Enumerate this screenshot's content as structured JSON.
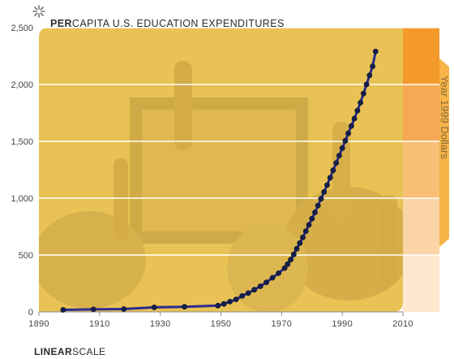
{
  "header": {
    "title_bold": "PER",
    "title_rest": "CAPITA U.S. EDUCATION EXPENDITURES"
  },
  "footer": {
    "scale_bold": "LINEAR",
    "scale_rest": "SCALE"
  },
  "legend": {
    "units_label": "Year 1999 Dollars"
  },
  "colors": {
    "plot_fill": "#e9c255",
    "line": "#2a2c92",
    "marker": "#16204c",
    "band_shades": [
      "#f39a2a",
      "#f5a955",
      "#f8bf75",
      "#fbd5a6",
      "#fde7cf"
    ]
  },
  "chart_data": {
    "type": "line",
    "title": "PERCAPITA U.S. EDUCATION EXPENDITURES",
    "xlabel": "",
    "ylabel": "Year 1999 Dollars",
    "xlim": [
      1890,
      2010
    ],
    "ylim": [
      0,
      2500
    ],
    "x_ticks": [
      1890,
      1910,
      1930,
      1950,
      1970,
      1990,
      2010
    ],
    "y_ticks": [
      0,
      500,
      1000,
      1500,
      2000,
      2500
    ],
    "x_tick_labels": [
      "1890",
      "1910",
      "1930",
      "1950",
      "1970",
      "1990",
      "2010"
    ],
    "y_tick_labels": [
      "0",
      "500",
      "1,000",
      "1,500",
      "2,000",
      "2,500"
    ],
    "grid": "horizontal",
    "series": [
      {
        "values": [
          {
            "x": 1898,
            "y": 18
          },
          {
            "x": 1908,
            "y": 22
          },
          {
            "x": 1918,
            "y": 25
          },
          {
            "x": 1928,
            "y": 40
          },
          {
            "x": 1938,
            "y": 45
          },
          {
            "x": 1949,
            "y": 55
          },
          {
            "x": 1951,
            "y": 70
          },
          {
            "x": 1953,
            "y": 90
          },
          {
            "x": 1955,
            "y": 110
          },
          {
            "x": 1957,
            "y": 140
          },
          {
            "x": 1959,
            "y": 165
          },
          {
            "x": 1961,
            "y": 195
          },
          {
            "x": 1963,
            "y": 225
          },
          {
            "x": 1965,
            "y": 260
          },
          {
            "x": 1967,
            "y": 300
          },
          {
            "x": 1969,
            "y": 340
          },
          {
            "x": 1971,
            "y": 385
          },
          {
            "x": 1972,
            "y": 420
          },
          {
            "x": 1973,
            "y": 460
          },
          {
            "x": 1974,
            "y": 505
          },
          {
            "x": 1975,
            "y": 555
          },
          {
            "x": 1976,
            "y": 605
          },
          {
            "x": 1977,
            "y": 655
          },
          {
            "x": 1978,
            "y": 710
          },
          {
            "x": 1979,
            "y": 765
          },
          {
            "x": 1980,
            "y": 820
          },
          {
            "x": 1981,
            "y": 875
          },
          {
            "x": 1982,
            "y": 935
          },
          {
            "x": 1983,
            "y": 995
          },
          {
            "x": 1984,
            "y": 1055
          },
          {
            "x": 1985,
            "y": 1115
          },
          {
            "x": 1986,
            "y": 1180
          },
          {
            "x": 1987,
            "y": 1245
          },
          {
            "x": 1988,
            "y": 1310
          },
          {
            "x": 1989,
            "y": 1375
          },
          {
            "x": 1990,
            "y": 1440
          },
          {
            "x": 1991,
            "y": 1505
          },
          {
            "x": 1992,
            "y": 1570
          },
          {
            "x": 1993,
            "y": 1635
          },
          {
            "x": 1994,
            "y": 1700
          },
          {
            "x": 1995,
            "y": 1770
          },
          {
            "x": 1996,
            "y": 1840
          },
          {
            "x": 1997,
            "y": 1920
          },
          {
            "x": 1998,
            "y": 2000
          },
          {
            "x": 1999,
            "y": 2080
          },
          {
            "x": 2000,
            "y": 2160
          },
          {
            "x": 2001,
            "y": 2290
          }
        ]
      }
    ]
  }
}
